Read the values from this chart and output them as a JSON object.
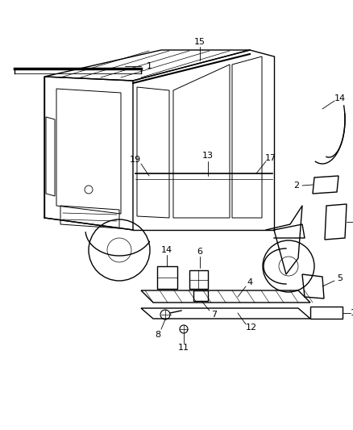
{
  "background_color": "#ffffff",
  "line_color": "#000000",
  "figsize": [
    4.38,
    5.33
  ],
  "dpi": 100
}
